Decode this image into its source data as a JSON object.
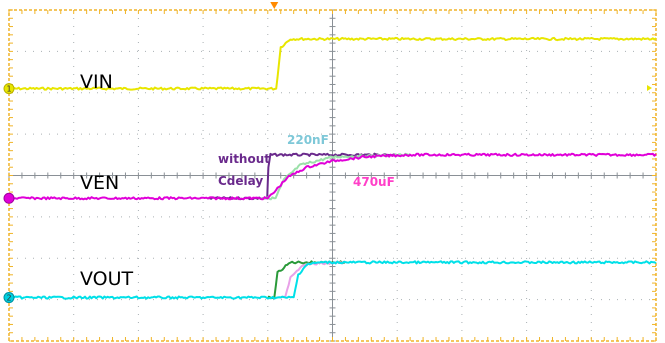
{
  "chart_data": {
    "type": "line",
    "grid": true,
    "title": "",
    "xlabel": "",
    "ylabel": "",
    "x_divisions": 10,
    "y_divisions": 8,
    "xlim": [
      0,
      10
    ],
    "ylim": [
      0,
      8
    ],
    "series": [
      {
        "name": "VIN",
        "color": "#e8e600",
        "points": [
          [
            0,
            6.1
          ],
          [
            4.13,
            6.1
          ],
          [
            4.2,
            7.1
          ],
          [
            4.35,
            7.3
          ],
          [
            10,
            7.3
          ]
        ]
      },
      {
        "name": "VEN without Cdelay",
        "color": "#6a2a8c",
        "points": [
          [
            3.1,
            3.45
          ],
          [
            3.99,
            3.45
          ],
          [
            4.01,
            4.2
          ],
          [
            4.04,
            4.5
          ],
          [
            6.0,
            4.5
          ]
        ]
      },
      {
        "name": "VEN 220nF",
        "color": "#9ae0a8",
        "points": [
          [
            3.9,
            3.45
          ],
          [
            4.12,
            3.45
          ],
          [
            4.25,
            3.9
          ],
          [
            4.5,
            4.25
          ],
          [
            5.0,
            4.45
          ],
          [
            6.2,
            4.5
          ]
        ]
      },
      {
        "name": "VEN 470uF",
        "color": "#e000d8",
        "points": [
          [
            0,
            3.45
          ],
          [
            4.0,
            3.45
          ],
          [
            4.1,
            3.6
          ],
          [
            4.3,
            3.95
          ],
          [
            4.6,
            4.2
          ],
          [
            5.0,
            4.35
          ],
          [
            5.5,
            4.45
          ],
          [
            6.2,
            4.5
          ],
          [
            10,
            4.5
          ]
        ]
      },
      {
        "name": "VOUT without Cdelay",
        "color": "#2a9a3a",
        "points": [
          [
            4.0,
            1.05
          ],
          [
            4.1,
            1.05
          ],
          [
            4.15,
            1.65
          ],
          [
            4.35,
            1.9
          ],
          [
            5.2,
            1.9
          ]
        ]
      },
      {
        "name": "VOUT 220nF",
        "color": "#e8a0e8",
        "points": [
          [
            4.2,
            1.05
          ],
          [
            4.27,
            1.05
          ],
          [
            4.35,
            1.55
          ],
          [
            4.55,
            1.85
          ],
          [
            5.2,
            1.9
          ]
        ]
      },
      {
        "name": "VOUT 470uF",
        "color": "#00e0e8",
        "points": [
          [
            0,
            1.05
          ],
          [
            4.4,
            1.05
          ],
          [
            4.47,
            1.6
          ],
          [
            4.6,
            1.85
          ],
          [
            4.8,
            1.9
          ],
          [
            10,
            1.9
          ]
        ]
      }
    ],
    "labels": {
      "vin": "VIN",
      "ven": "VEN",
      "vout": "VOUT"
    },
    "annotations": {
      "without": "without",
      "cdelay": "Cdelay",
      "c220": "220nF",
      "c470": "470uF"
    },
    "annotation_colors": {
      "purple": "#6a2a8c",
      "cyan": "#7ec8d8",
      "pink": "#ff40c8"
    },
    "markers": {
      "ch1": "1",
      "ch2": "2",
      "ch1_color": "#e8e600",
      "ch2_color": "#00d0e0",
      "ven_color": "#e000d8",
      "trigger_color": "#ff8a00"
    }
  }
}
